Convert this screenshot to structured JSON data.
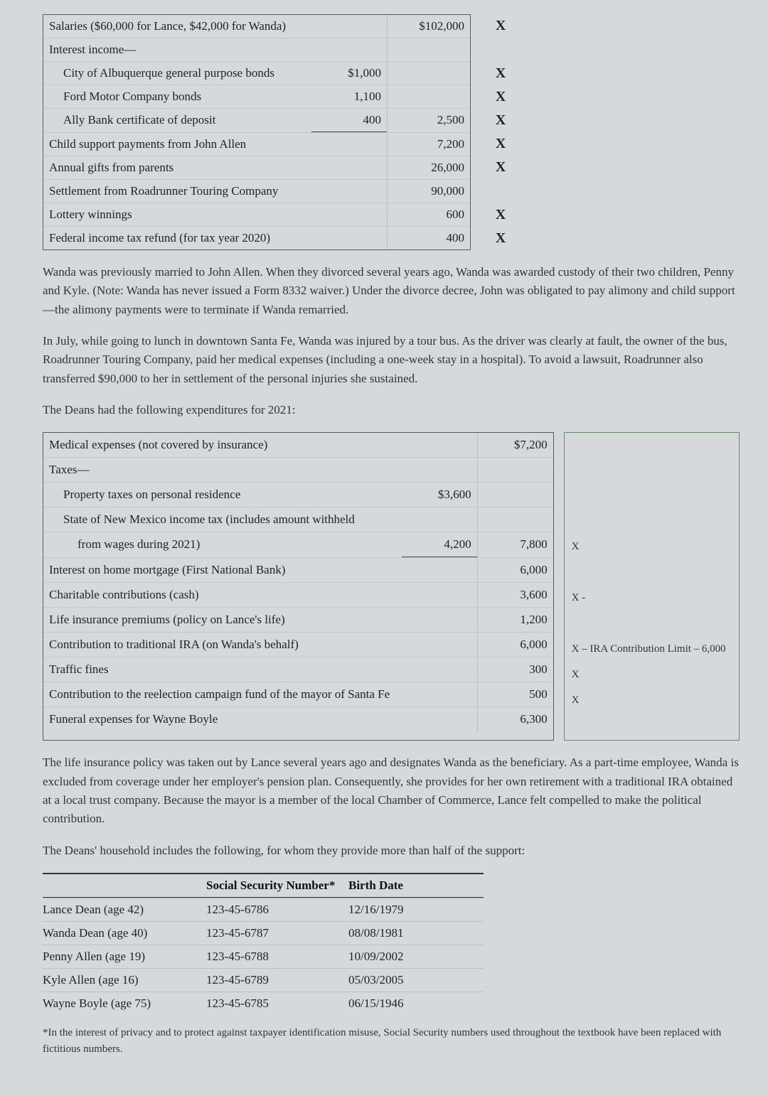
{
  "income": {
    "rows": [
      {
        "label": "Salaries ($60,000 for Lance, $42,000 for Wanda)",
        "c1": "",
        "c2": "$102,000",
        "mark": "X",
        "indent": false
      },
      {
        "label": "Interest income—",
        "c1": "",
        "c2": "",
        "mark": "",
        "indent": false
      },
      {
        "label": "City of Albuquerque general purpose bonds",
        "c1": "$1,000",
        "c2": "",
        "mark": "X",
        "indent": true
      },
      {
        "label": "Ford Motor Company bonds",
        "c1": "1,100",
        "c2": "",
        "mark": "X",
        "indent": true
      },
      {
        "label": "Ally Bank certificate of deposit",
        "c1": "400",
        "c2": "2,500",
        "mark": "X",
        "indent": true,
        "underline": true
      },
      {
        "label": "Child support payments from John Allen",
        "c1": "",
        "c2": "7,200",
        "mark": "X",
        "indent": false
      },
      {
        "label": "Annual gifts from parents",
        "c1": "",
        "c2": "26,000",
        "mark": "X",
        "indent": false
      },
      {
        "label": "Settlement from Roadrunner Touring Company",
        "c1": "",
        "c2": "90,000",
        "mark": "",
        "indent": false
      },
      {
        "label": "Lottery winnings",
        "c1": "",
        "c2": "600",
        "mark": "X",
        "indent": false
      },
      {
        "label": "Federal income tax refund (for tax year 2020)",
        "c1": "",
        "c2": "400",
        "mark": "X",
        "indent": false
      }
    ]
  },
  "para1": "Wanda was previously married to John Allen. When they divorced several years ago, Wanda was awarded custody of their two children, Penny and Kyle. (Note: Wanda has never issued a Form 8332 waiver.) Under the divorce decree, John was obligated to pay alimony and child support—the alimony payments were to terminate if Wanda remarried.",
  "para2": "In July, while going to lunch in downtown Santa Fe, Wanda was injured by a tour bus. As the driver was clearly at fault, the owner of the bus, Roadrunner Touring Company, paid her medical expenses (including a one-week stay in a hospital). To avoid a lawsuit, Roadrunner also transferred $90,000 to her in settlement of the personal injuries she sustained.",
  "para3": "The Deans had the following expenditures for 2021:",
  "expenses": {
    "rows": [
      {
        "label": "Medical expenses (not covered by insurance)",
        "c1": "",
        "c2": "$7,200",
        "note": ""
      },
      {
        "label": "Taxes—",
        "c1": "",
        "c2": "",
        "note": ""
      },
      {
        "label": "Property taxes on personal residence",
        "c1": "$3,600",
        "c2": "",
        "note": "",
        "indent": true
      },
      {
        "label": "State of New Mexico income tax (includes amount withheld",
        "c1": "",
        "c2": "",
        "note": "",
        "indent": true
      },
      {
        "label": "from wages during 2021)",
        "c1": "4,200",
        "c2": "7,800",
        "note": "X",
        "indent": true,
        "extra": true,
        "underline": true
      },
      {
        "label": "Interest on home mortgage (First National Bank)",
        "c1": "",
        "c2": "6,000",
        "note": ""
      },
      {
        "label": "Charitable contributions (cash)",
        "c1": "",
        "c2": "3,600",
        "note": "X -"
      },
      {
        "label": "Life insurance premiums (policy on Lance's life)",
        "c1": "",
        "c2": "1,200",
        "note": ""
      },
      {
        "label": "Contribution to traditional IRA (on Wanda's behalf)",
        "c1": "",
        "c2": "6,000",
        "note": "X – IRA Contribution Limit – 6,000"
      },
      {
        "label": "Traffic fines",
        "c1": "",
        "c2": "300",
        "note": "X"
      },
      {
        "label": "Contribution to the reelection campaign fund of the mayor of Santa Fe",
        "c1": "",
        "c2": "500",
        "note": "X"
      },
      {
        "label": "Funeral expenses for Wayne Boyle",
        "c1": "",
        "c2": "6,300",
        "note": ""
      }
    ]
  },
  "para4": "The life insurance policy was taken out by Lance several years ago and designates Wanda as the beneficiary. As a part-time employee, Wanda is excluded from coverage under her employer's pension plan. Consequently, she provides for her own retirement with a traditional IRA obtained at a local trust company. Because the mayor is a member of the local Chamber of Commerce, Lance felt compelled to make the political contribution.",
  "para5": "The Deans' household includes the following, for whom they provide more than half of the support:",
  "household": {
    "head": {
      "ssn": "Social Security Number*",
      "bd": "Birth Date"
    },
    "rows": [
      {
        "name": "Lance Dean (age 42)",
        "ssn": "123-45-6786",
        "bd": "12/16/1979"
      },
      {
        "name": "Wanda Dean (age 40)",
        "ssn": "123-45-6787",
        "bd": "08/08/1981"
      },
      {
        "name": "Penny Allen (age 19)",
        "ssn": "123-45-6788",
        "bd": "10/09/2002"
      },
      {
        "name": "Kyle Allen (age 16)",
        "ssn": "123-45-6789",
        "bd": "05/03/2005"
      },
      {
        "name": "Wayne Boyle (age 75)",
        "ssn": "123-45-6785",
        "bd": "06/15/1946"
      }
    ]
  },
  "footnote": "*In the interest of privacy and to protect against taxpayer identification misuse, Social Security numbers used throughout the textbook have been replaced with fictitious numbers."
}
